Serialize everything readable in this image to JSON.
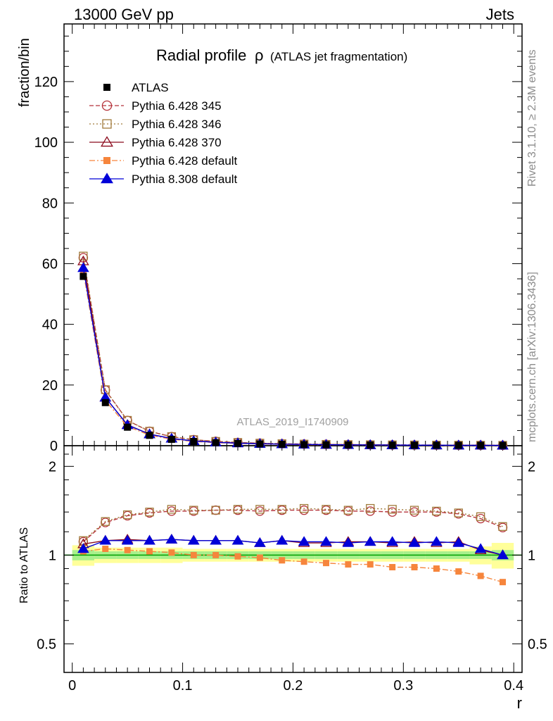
{
  "header": {
    "left": "13000 GeV pp",
    "right": "Jets"
  },
  "side_text": {
    "top": "Rivet 3.1.10, ≥ 2.3M events",
    "bottom": "mcplots.cern.ch [arXiv:1306.3436]"
  },
  "chart_data": {
    "type": "line",
    "title": "Radial profile",
    "title_symbol": "ρ",
    "title_suffix": "(ATLAS jet fragmentation)",
    "watermark": "ATLAS_2019_I1740909",
    "xlabel": "r",
    "ylabel": "fraction/bin",
    "ratio_ylabel": "Ratio to ATLAS",
    "xlim": [
      0,
      0.4
    ],
    "ylim": [
      0,
      139
    ],
    "ratio_ylim": [
      0.4,
      2.35
    ],
    "ratio_log": true,
    "x_ticks": [
      "0",
      "0.1",
      "0.2",
      "0.3",
      "0.4"
    ],
    "y_ticks": [
      "0",
      "20",
      "40",
      "60",
      "80",
      "100",
      "120"
    ],
    "ratio_ticks": [
      "0.5",
      "1",
      "2"
    ],
    "grid": false,
    "legend_position": "top-left",
    "x": [
      0.01,
      0.03,
      0.05,
      0.07,
      0.09,
      0.11,
      0.13,
      0.15,
      0.17,
      0.19,
      0.21,
      0.23,
      0.25,
      0.27,
      0.29,
      0.31,
      0.33,
      0.35,
      0.37,
      0.39
    ],
    "data": {
      "name": "ATLAS",
      "values": [
        55.8,
        14.2,
        6.1,
        3.4,
        2.1,
        1.4,
        1.0,
        0.75,
        0.58,
        0.46,
        0.37,
        0.31,
        0.26,
        0.22,
        0.19,
        0.16,
        0.14,
        0.12,
        0.11,
        0.1
      ],
      "color": "#000000",
      "ratio_band_inner": [
        0.04,
        0.03,
        0.03,
        0.03,
        0.03,
        0.03,
        0.03,
        0.03,
        0.03,
        0.03,
        0.03,
        0.03,
        0.03,
        0.03,
        0.03,
        0.03,
        0.03,
        0.03,
        0.03,
        0.04
      ],
      "ratio_band_outer": [
        0.08,
        0.06,
        0.06,
        0.06,
        0.06,
        0.05,
        0.05,
        0.05,
        0.05,
        0.05,
        0.05,
        0.05,
        0.05,
        0.05,
        0.05,
        0.05,
        0.05,
        0.05,
        0.07,
        0.1
      ]
    },
    "series": [
      {
        "name": "Pythia 6.428 345",
        "color": "#b5323a",
        "dash": "6,3",
        "marker": "circle-open",
        "ratio": [
          1.11,
          1.29,
          1.36,
          1.39,
          1.41,
          1.41,
          1.42,
          1.42,
          1.41,
          1.42,
          1.42,
          1.42,
          1.41,
          1.41,
          1.4,
          1.4,
          1.4,
          1.38,
          1.33,
          1.24
        ]
      },
      {
        "name": "Pythia 6.428 346",
        "color": "#a07a3a",
        "dash": "2,3",
        "marker": "square-open",
        "ratio": [
          1.12,
          1.3,
          1.37,
          1.4,
          1.43,
          1.42,
          1.42,
          1.43,
          1.43,
          1.43,
          1.44,
          1.43,
          1.42,
          1.44,
          1.43,
          1.42,
          1.41,
          1.39,
          1.35,
          1.25
        ]
      },
      {
        "name": "Pythia 6.428 370",
        "color": "#8b0a1c",
        "dash": "",
        "marker": "triangle-open",
        "ratio": [
          1.09,
          1.12,
          1.13,
          1.12,
          1.13,
          1.12,
          1.12,
          1.12,
          1.1,
          1.12,
          1.1,
          1.1,
          1.11,
          1.11,
          1.1,
          1.11,
          1.1,
          1.11,
          1.04,
          1.0
        ]
      },
      {
        "name": "Pythia 6.428 default",
        "color": "#f6853c",
        "dash": "8,3,2,3",
        "marker": "square-filled",
        "ratio": [
          1.03,
          1.05,
          1.04,
          1.03,
          1.02,
          1.0,
          1.0,
          0.99,
          0.98,
          0.96,
          0.95,
          0.94,
          0.93,
          0.93,
          0.91,
          0.91,
          0.9,
          0.88,
          0.85,
          0.81
        ]
      },
      {
        "name": "Pythia 8.308 default",
        "color": "#0000d8",
        "dash": "",
        "marker": "triangle-filled",
        "ratio": [
          1.05,
          1.12,
          1.12,
          1.12,
          1.13,
          1.12,
          1.12,
          1.12,
          1.1,
          1.12,
          1.11,
          1.11,
          1.1,
          1.11,
          1.11,
          1.1,
          1.11,
          1.1,
          1.05,
          1.0
        ]
      }
    ]
  }
}
